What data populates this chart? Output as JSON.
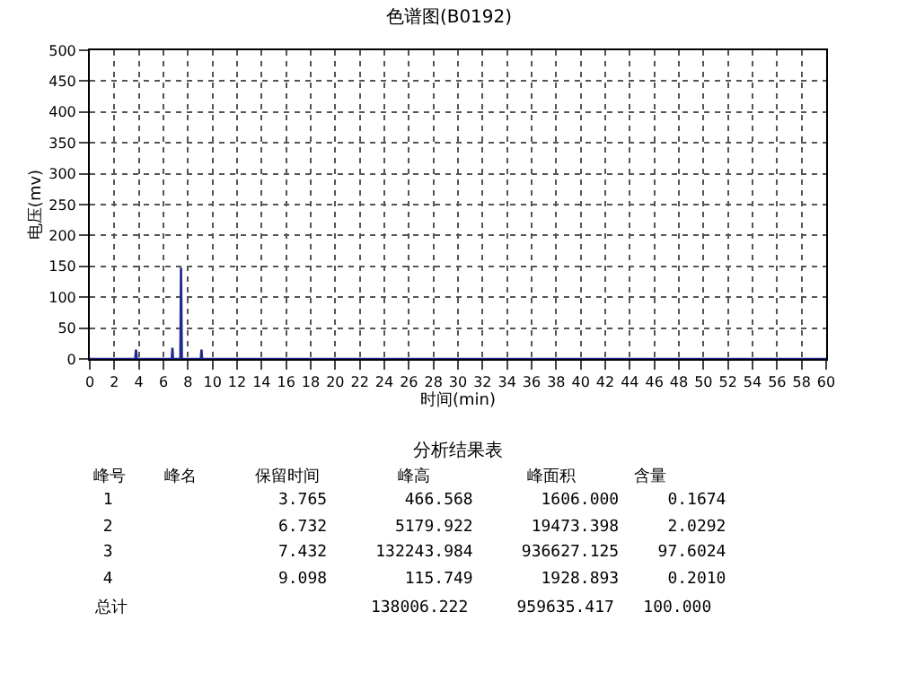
{
  "chart_data": {
    "type": "line",
    "title": "色谱图(B0192)",
    "xlabel": "时间(min)",
    "ylabel": "电压(mv)",
    "x": [
      0,
      3.7,
      3.765,
      3.83,
      6.68,
      6.732,
      6.78,
      7.38,
      7.432,
      7.5,
      9.05,
      9.098,
      9.15,
      60
    ],
    "series": [
      {
        "color": "#1f2a8c",
        "values": [
          0,
          0,
          15,
          0,
          0,
          18,
          0,
          0,
          148,
          0,
          0,
          15,
          0,
          0
        ]
      }
    ],
    "xlim": [
      0,
      60
    ],
    "xticks": [
      0,
      2,
      4,
      6,
      8,
      10,
      12,
      14,
      16,
      18,
      20,
      22,
      24,
      26,
      28,
      30,
      32,
      34,
      36,
      38,
      40,
      42,
      44,
      46,
      48,
      50,
      52,
      54,
      56,
      58,
      60
    ],
    "ylim": [
      0,
      500
    ],
    "yticks": [
      0,
      50,
      100,
      150,
      200,
      250,
      300,
      350,
      400,
      450,
      500
    ],
    "grid": true,
    "line_style": "solid",
    "marker": "none",
    "annotations": [
      "分析结果表",
      "峰号    峰名      保留时间        峰高          峰面积      含量",
      " 1                 3.765        466.568       1606.000     0.1674",
      " 2                 6.732       5179.922      19473.398     2.0292",
      " 3                 7.432     132243.984     936627.125    97.6024",
      " 4                 9.098        115.749       1928.893     0.2010",
      "总计                         138006.222     959635.417   100.000"
    ]
  }
}
